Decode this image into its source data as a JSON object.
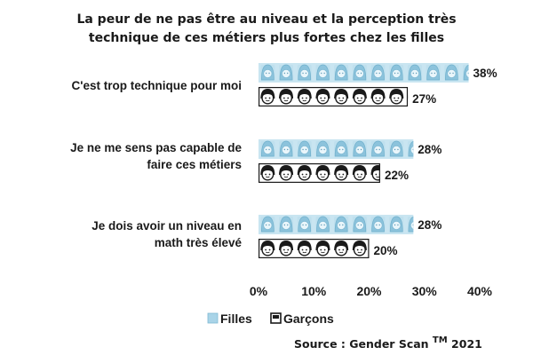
{
  "chart_data": {
    "type": "bar",
    "orientation": "horizontal",
    "title_lines": [
      "La peur de ne pas être au niveau et la perception très",
      "technique de ces métiers plus fortes chez les filles"
    ],
    "categories": [
      [
        "C'est trop technique pour moi"
      ],
      [
        "Je ne me sens pas capable de",
        "faire ces métiers"
      ],
      [
        "Je dois avoir un niveau en",
        "math très élevé"
      ]
    ],
    "series": [
      {
        "name": "Filles",
        "values": [
          38,
          28,
          28
        ],
        "labels": [
          "38%",
          "28%",
          "28%"
        ],
        "color": "#a9d4e8",
        "icon": "girl-icon"
      },
      {
        "name": "Garçons",
        "values": [
          27,
          22,
          20
        ],
        "labels": [
          "27%",
          "22%",
          "20%"
        ],
        "color": "#ffffff",
        "icon": "boy-icon"
      }
    ],
    "x_ticks": [
      "0%",
      "10%",
      "20%",
      "30%",
      "40%"
    ],
    "x_tick_values": [
      0,
      10,
      20,
      30,
      40
    ],
    "xlim": [
      0,
      40
    ],
    "grid": false,
    "legend_position": "bottom-left",
    "source_text": "Source : Gender Scan",
    "source_tm": "TM",
    "source_year": "2021"
  }
}
